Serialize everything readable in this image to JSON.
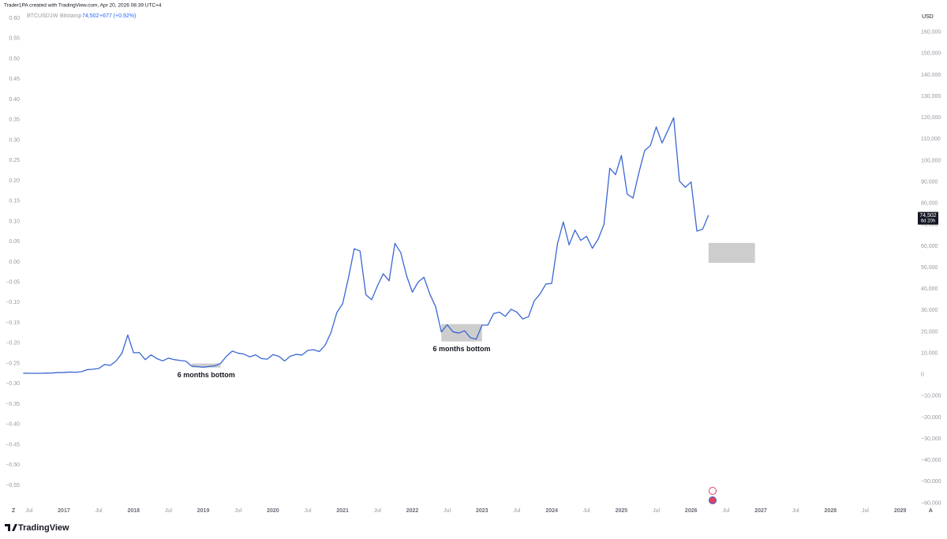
{
  "chart_data": {
    "type": "line",
    "title": "Trader1PA created with TradingView.com, Apr 20, 2026 08:39 UTC+4",
    "interval": "1W",
    "exchange": "Bitstamp",
    "last": {
      "value": 74502,
      "label": "74,502"
    },
    "change": "+677 (+0.92%)",
    "countdown": "6d 20h",
    "y_unit": "USD",
    "brand": "TradingView",
    "scale_buttons": [
      "Z",
      "A"
    ],
    "grid": false,
    "x": [
      "2016-06",
      "2016-07",
      "2016-08",
      "2016-09",
      "2016-10",
      "2016-11",
      "2016-12",
      "2017-01",
      "2017-02",
      "2017-03",
      "2017-04",
      "2017-05",
      "2017-06",
      "2017-07",
      "2017-08",
      "2017-09",
      "2017-10",
      "2017-11",
      "2017-12",
      "2018-01",
      "2018-02",
      "2018-03",
      "2018-04",
      "2018-05",
      "2018-06",
      "2018-07",
      "2018-08",
      "2018-09",
      "2018-10",
      "2018-11",
      "2018-12",
      "2019-01",
      "2019-02",
      "2019-03",
      "2019-04",
      "2019-05",
      "2019-06",
      "2019-07",
      "2019-08",
      "2019-09",
      "2019-10",
      "2019-11",
      "2019-12",
      "2020-01",
      "2020-02",
      "2020-03",
      "2020-04",
      "2020-05",
      "2020-06",
      "2020-07",
      "2020-08",
      "2020-09",
      "2020-10",
      "2020-11",
      "2020-12",
      "2021-01",
      "2021-02",
      "2021-03",
      "2021-04",
      "2021-05",
      "2021-06",
      "2021-07",
      "2021-08",
      "2021-09",
      "2021-10",
      "2021-11",
      "2021-12",
      "2022-01",
      "2022-02",
      "2022-03",
      "2022-04",
      "2022-05",
      "2022-06",
      "2022-07",
      "2022-08",
      "2022-09",
      "2022-10",
      "2022-11",
      "2022-12",
      "2023-01",
      "2023-02",
      "2023-03",
      "2023-04",
      "2023-05",
      "2023-06",
      "2023-07",
      "2023-08",
      "2023-09",
      "2023-10",
      "2023-11",
      "2023-12",
      "2024-01",
      "2024-02",
      "2024-03",
      "2024-04",
      "2024-05",
      "2024-06",
      "2024-07",
      "2024-08",
      "2024-09",
      "2024-10",
      "2024-11",
      "2024-12",
      "2025-01",
      "2025-02",
      "2025-03",
      "2025-04",
      "2025-05",
      "2025-06",
      "2025-07",
      "2025-08",
      "2025-09",
      "2025-10",
      "2025-11",
      "2025-12",
      "2026-01",
      "2026-02",
      "2026-03",
      "2026-04"
    ],
    "series": [
      {
        "name": "BTCUSD",
        "color": "#3a66d4",
        "values": [
          650,
          620,
          575,
          610,
          700,
          740,
          960,
          970,
          1190,
          1080,
          1350,
          2300,
          2500,
          2870,
          4700,
          4300,
          6400,
          10000,
          18500,
          10200,
          10300,
          7000,
          9200,
          7500,
          6400,
          7700,
          7000,
          6600,
          6300,
          4000,
          3700,
          3450,
          3800,
          4100,
          5300,
          8600,
          11000,
          10000,
          9600,
          8300,
          9200,
          7500,
          7200,
          9350,
          8600,
          6400,
          8600,
          9450,
          9140,
          11300,
          11650,
          10780,
          13800,
          19700,
          29000,
          33100,
          45200,
          58800,
          57700,
          37300,
          35000,
          41500,
          47100,
          43800,
          61300,
          57000,
          46300,
          38500,
          43200,
          45500,
          37700,
          31800,
          19900,
          23300,
          20000,
          19400,
          20500,
          17200,
          16500,
          23100,
          23100,
          28500,
          29200,
          27200,
          30500,
          29200,
          26000,
          27000,
          34500,
          37700,
          42300,
          42600,
          61200,
          71300,
          60600,
          67500,
          62700,
          64600,
          59000,
          63300,
          70200,
          96400,
          93400,
          102400,
          84300,
          82500,
          94200,
          104600,
          107100,
          115700,
          108200,
          114000,
          120000,
          90400,
          87500,
          90000,
          67000,
          68000,
          74502
        ]
      }
    ],
    "zones": [
      {
        "x": [
          "2018-11",
          "2019-04"
        ],
        "y": [
          3300,
          5200
        ],
        "label": "6 months bottom"
      },
      {
        "x": [
          "2022-06",
          "2023-01"
        ],
        "y": [
          15500,
          23600
        ],
        "label": "6 months bottom"
      },
      {
        "x": [
          "2026-04",
          "2026-12"
        ],
        "y": [
          52200,
          61500
        ]
      }
    ],
    "xlim": [
      "2016-02",
      "2029-02"
    ],
    "xticks": [
      {
        "value": "2016-07",
        "label": "Jul"
      },
      {
        "value": "2017-01",
        "label": "2017"
      },
      {
        "value": "2017-07",
        "label": "Jul"
      },
      {
        "value": "2018-01",
        "label": "2018"
      },
      {
        "value": "2018-07",
        "label": "Jul"
      },
      {
        "value": "2019-01",
        "label": "2019"
      },
      {
        "value": "2019-07",
        "label": "Jul"
      },
      {
        "value": "2020-01",
        "label": "2020"
      },
      {
        "value": "2020-07",
        "label": "Jul"
      },
      {
        "value": "2021-01",
        "label": "2021"
      },
      {
        "value": "2021-07",
        "label": "Jul"
      },
      {
        "value": "2022-01",
        "label": "2022"
      },
      {
        "value": "2022-07",
        "label": "Jul"
      },
      {
        "value": "2023-01",
        "label": "2023"
      },
      {
        "value": "2023-07",
        "label": "Jul"
      },
      {
        "value": "2024-01",
        "label": "2024"
      },
      {
        "value": "2024-07",
        "label": "Jul"
      },
      {
        "value": "2025-01",
        "label": "2025"
      },
      {
        "value": "2025-07",
        "label": "Jul"
      },
      {
        "value": "2026-01",
        "label": "2026"
      },
      {
        "value": "2026-07",
        "label": "Jul"
      },
      {
        "value": "2027-01",
        "label": "2027"
      },
      {
        "value": "2027-07",
        "label": "Jul"
      },
      {
        "value": "2028-01",
        "label": "2028"
      },
      {
        "value": "2028-07",
        "label": "Jul"
      },
      {
        "value": "2029-01",
        "label": "2029"
      }
    ],
    "ylim": [
      -65000,
      175000
    ],
    "yticks": [
      {
        "value": 160000,
        "label": "160,000"
      },
      {
        "value": 150000,
        "label": "150,000"
      },
      {
        "value": 140000,
        "label": "140,000"
      },
      {
        "value": 130000,
        "label": "130,000"
      },
      {
        "value": 120000,
        "label": "120,000"
      },
      {
        "value": 110000,
        "label": "110,000"
      },
      {
        "value": 100000,
        "label": "100,000"
      },
      {
        "value": 90000,
        "label": "90,000"
      },
      {
        "value": 80000,
        "label": "80,000"
      },
      {
        "value": 70000,
        "label": "70,000"
      },
      {
        "value": 60000,
        "label": "60,000"
      },
      {
        "value": 50000,
        "label": "50,000"
      },
      {
        "value": 40000,
        "label": "40,000"
      },
      {
        "value": 30000,
        "label": "30,000"
      },
      {
        "value": 20000,
        "label": "20,000"
      },
      {
        "value": 10000,
        "label": "10,000"
      },
      0,
      {
        "value": -10000,
        "label": "−10,000"
      },
      {
        "value": -20000,
        "label": "−20,000"
      },
      {
        "value": -30000,
        "label": "−30,000"
      },
      {
        "value": -40000,
        "label": "−40,000"
      },
      {
        "value": -50000,
        "label": "−50,000"
      },
      {
        "value": -60000,
        "label": "−60,000"
      }
    ],
    "y2lim": [
      -0.62,
      0.645
    ],
    "y2ticks": [
      {
        "value": 0.6,
        "label": "0.60"
      },
      {
        "value": 0.55,
        "label": "0.55"
      },
      {
        "value": 0.5,
        "label": "0.50"
      },
      {
        "value": 0.45,
        "label": "0.45"
      },
      {
        "value": 0.4,
        "label": "0.40"
      },
      {
        "value": 0.35,
        "label": "0.35"
      },
      {
        "value": 0.3,
        "label": "0.30"
      },
      {
        "value": 0.25,
        "label": "0.25"
      },
      {
        "value": 0.2,
        "label": "0.20"
      },
      {
        "value": 0.15,
        "label": "0.15"
      },
      {
        "value": 0.1,
        "label": "0.10"
      },
      {
        "value": 0.05,
        "label": "0.05"
      },
      {
        "value": 0,
        "label": "0.00"
      },
      {
        "value": -0.05,
        "label": "−0.05"
      },
      {
        "value": -0.1,
        "label": "−0.10"
      },
      {
        "value": -0.15,
        "label": "−0.15"
      },
      {
        "value": -0.2,
        "label": "−0.20"
      },
      {
        "value": -0.25,
        "label": "−0.25"
      },
      {
        "value": -0.3,
        "label": "−0.30"
      },
      {
        "value": -0.35,
        "label": "−0.35"
      },
      {
        "value": -0.4,
        "label": "−0.40"
      },
      {
        "value": -0.45,
        "label": "−0.45"
      },
      {
        "value": -0.5,
        "label": "−0.50"
      },
      {
        "value": -0.55,
        "label": "−0.55"
      }
    ]
  }
}
